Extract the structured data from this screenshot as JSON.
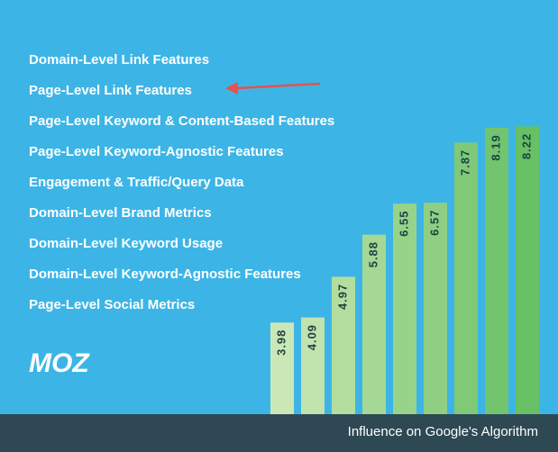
{
  "chart_data": {
    "type": "bar",
    "categories": [
      "Page-Level Social Metrics",
      "Domain-Level Keyword-Agnostic Features",
      "Domain-Level Keyword Usage",
      "Domain-Level Brand Metrics",
      "Engagement & Traffic/Query Data",
      "Page-Level Keyword-Agnostic Features",
      "Page-Level Keyword & Content-Based Features",
      "Page-Level Link Features",
      "Domain-Level Link Features"
    ],
    "values": [
      3.98,
      4.09,
      4.97,
      5.88,
      6.55,
      6.57,
      7.87,
      8.19,
      8.22
    ],
    "colors": [
      "#cbe7b7",
      "#c1e3ad",
      "#b3dea0",
      "#a5d895",
      "#98d38a",
      "#8ecf83",
      "#7fc977",
      "#72c46e",
      "#67c064"
    ],
    "ylim": [
      2,
      8.5
    ],
    "xlabel": "Influence on Google's Algorithm",
    "logo": "MOZ"
  }
}
